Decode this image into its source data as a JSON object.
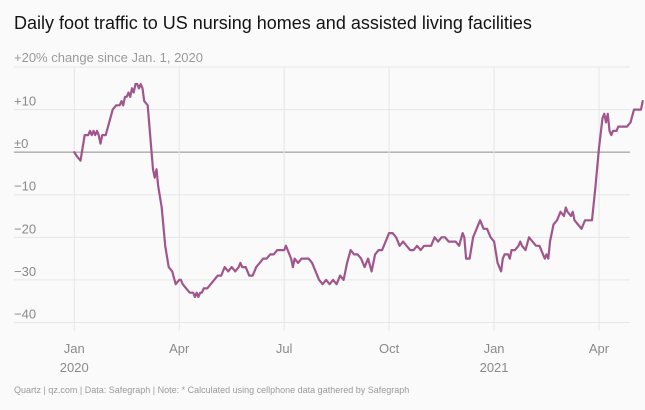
{
  "chart_data": {
    "type": "line",
    "title": "Daily foot traffic to US nursing homes and assisted living facilities",
    "top_tick_label": "+20% change since Jan. 1, 2020",
    "ylabel": "% change since Jan. 1, 2020",
    "ylim": [
      -42,
      20
    ],
    "y_ticks": [
      {
        "value": 20,
        "label": ""
      },
      {
        "value": 10,
        "label": "+10"
      },
      {
        "value": 0,
        "label": "±0"
      },
      {
        "value": -10,
        "label": "−10"
      },
      {
        "value": -20,
        "label": "−20"
      },
      {
        "value": -30,
        "label": "−30"
      },
      {
        "value": -40,
        "label": "−40"
      }
    ],
    "x_unit": "months since Jan 1, 2020",
    "xlim": [
      -0.15,
      15.6
    ],
    "x_ticks": [
      {
        "value": 0,
        "label": "Jan",
        "sublabel": "2020"
      },
      {
        "value": 3,
        "label": "Apr",
        "sublabel": ""
      },
      {
        "value": 6,
        "label": "Jul",
        "sublabel": ""
      },
      {
        "value": 9,
        "label": "Oct",
        "sublabel": ""
      },
      {
        "value": 12,
        "label": "Jan",
        "sublabel": "2021"
      },
      {
        "value": 15,
        "label": "Apr",
        "sublabel": ""
      }
    ],
    "series": [
      {
        "name": "Foot traffic change",
        "color": "#a0558c",
        "points": [
          [
            0.0,
            0
          ],
          [
            0.08,
            -1
          ],
          [
            0.18,
            -2
          ],
          [
            0.3,
            4
          ],
          [
            0.4,
            4
          ],
          [
            0.45,
            5
          ],
          [
            0.5,
            4
          ],
          [
            0.55,
            5
          ],
          [
            0.6,
            4
          ],
          [
            0.65,
            5
          ],
          [
            0.7,
            4
          ],
          [
            0.75,
            2
          ],
          [
            0.8,
            4
          ],
          [
            0.9,
            4
          ],
          [
            1.0,
            7
          ],
          [
            1.1,
            10
          ],
          [
            1.2,
            11
          ],
          [
            1.3,
            11
          ],
          [
            1.35,
            12
          ],
          [
            1.4,
            11
          ],
          [
            1.45,
            13
          ],
          [
            1.5,
            13
          ],
          [
            1.55,
            14
          ],
          [
            1.6,
            13
          ],
          [
            1.65,
            15
          ],
          [
            1.7,
            14
          ],
          [
            1.75,
            16
          ],
          [
            1.8,
            16
          ],
          [
            1.85,
            15
          ],
          [
            1.9,
            16
          ],
          [
            1.95,
            15
          ],
          [
            2.0,
            12
          ],
          [
            2.1,
            11
          ],
          [
            2.2,
            1
          ],
          [
            2.25,
            -4
          ],
          [
            2.3,
            -6
          ],
          [
            2.35,
            -4
          ],
          [
            2.4,
            -8
          ],
          [
            2.5,
            -13
          ],
          [
            2.6,
            -22
          ],
          [
            2.7,
            -27
          ],
          [
            2.8,
            -28
          ],
          [
            2.9,
            -31
          ],
          [
            3.0,
            -30
          ],
          [
            3.05,
            -30
          ],
          [
            3.1,
            -31
          ],
          [
            3.2,
            -32
          ],
          [
            3.3,
            -33
          ],
          [
            3.4,
            -33
          ],
          [
            3.45,
            -34
          ],
          [
            3.5,
            -33
          ],
          [
            3.55,
            -34
          ],
          [
            3.6,
            -33
          ],
          [
            3.65,
            -33
          ],
          [
            3.7,
            -32
          ],
          [
            3.8,
            -32
          ],
          [
            3.9,
            -31
          ],
          [
            4.0,
            -30
          ],
          [
            4.1,
            -29
          ],
          [
            4.2,
            -29
          ],
          [
            4.3,
            -27
          ],
          [
            4.4,
            -28
          ],
          [
            4.5,
            -27
          ],
          [
            4.6,
            -28
          ],
          [
            4.7,
            -27
          ],
          [
            4.75,
            -26
          ],
          [
            4.8,
            -27
          ],
          [
            4.9,
            -27
          ],
          [
            5.0,
            -29
          ],
          [
            5.1,
            -29
          ],
          [
            5.2,
            -27
          ],
          [
            5.3,
            -26
          ],
          [
            5.4,
            -25
          ],
          [
            5.5,
            -25
          ],
          [
            5.6,
            -24
          ],
          [
            5.7,
            -24
          ],
          [
            5.8,
            -23
          ],
          [
            5.9,
            -23
          ],
          [
            6.0,
            -23
          ],
          [
            6.05,
            -22
          ],
          [
            6.1,
            -23
          ],
          [
            6.2,
            -25
          ],
          [
            6.25,
            -27
          ],
          [
            6.3,
            -25
          ],
          [
            6.4,
            -26
          ],
          [
            6.5,
            -25
          ],
          [
            6.6,
            -25
          ],
          [
            6.7,
            -25
          ],
          [
            6.8,
            -26
          ],
          [
            6.9,
            -28
          ],
          [
            7.0,
            -30
          ],
          [
            7.1,
            -31
          ],
          [
            7.2,
            -30
          ],
          [
            7.3,
            -31
          ],
          [
            7.4,
            -30
          ],
          [
            7.5,
            -31
          ],
          [
            7.6,
            -29
          ],
          [
            7.7,
            -30
          ],
          [
            7.8,
            -26
          ],
          [
            7.9,
            -23
          ],
          [
            8.0,
            -24
          ],
          [
            8.1,
            -24
          ],
          [
            8.2,
            -25
          ],
          [
            8.3,
            -27
          ],
          [
            8.4,
            -25
          ],
          [
            8.5,
            -28
          ],
          [
            8.6,
            -24
          ],
          [
            8.7,
            -23
          ],
          [
            8.8,
            -23
          ],
          [
            8.9,
            -21
          ],
          [
            9.0,
            -19
          ],
          [
            9.1,
            -19
          ],
          [
            9.2,
            -20
          ],
          [
            9.3,
            -22
          ],
          [
            9.4,
            -21
          ],
          [
            9.5,
            -22
          ],
          [
            9.6,
            -23
          ],
          [
            9.7,
            -23
          ],
          [
            9.8,
            -22
          ],
          [
            9.9,
            -23
          ],
          [
            10.0,
            -22
          ],
          [
            10.1,
            -22
          ],
          [
            10.2,
            -22
          ],
          [
            10.3,
            -20
          ],
          [
            10.4,
            -21
          ],
          [
            10.5,
            -20
          ],
          [
            10.6,
            -20
          ],
          [
            10.7,
            -21
          ],
          [
            10.8,
            -21
          ],
          [
            10.9,
            -21
          ],
          [
            11.0,
            -22
          ],
          [
            11.1,
            -19
          ],
          [
            11.15,
            -20
          ],
          [
            11.2,
            -25
          ],
          [
            11.3,
            -25
          ],
          [
            11.4,
            -20
          ],
          [
            11.5,
            -18
          ],
          [
            11.6,
            -16
          ],
          [
            11.7,
            -18
          ],
          [
            11.8,
            -18
          ],
          [
            11.85,
            -19
          ],
          [
            11.9,
            -20
          ],
          [
            12.0,
            -21
          ],
          [
            12.1,
            -26
          ],
          [
            12.2,
            -28
          ],
          [
            12.25,
            -25
          ],
          [
            12.3,
            -24
          ],
          [
            12.4,
            -24
          ],
          [
            12.45,
            -25
          ],
          [
            12.5,
            -23
          ],
          [
            12.6,
            -23
          ],
          [
            12.7,
            -22
          ],
          [
            12.75,
            -21
          ],
          [
            12.8,
            -22
          ],
          [
            12.9,
            -23
          ],
          [
            13.0,
            -20
          ],
          [
            13.1,
            -21
          ],
          [
            13.2,
            -22
          ],
          [
            13.3,
            -22
          ],
          [
            13.4,
            -24
          ],
          [
            13.45,
            -25
          ],
          [
            13.5,
            -24
          ],
          [
            13.55,
            -25
          ],
          [
            13.6,
            -21
          ],
          [
            13.7,
            -17
          ],
          [
            13.8,
            -16
          ],
          [
            13.9,
            -14
          ],
          [
            14.0,
            -15
          ],
          [
            14.05,
            -13
          ],
          [
            14.1,
            -14
          ],
          [
            14.2,
            -15
          ],
          [
            14.25,
            -14
          ],
          [
            14.3,
            -16
          ],
          [
            14.4,
            -17
          ],
          [
            14.5,
            -18
          ],
          [
            14.55,
            -17
          ],
          [
            14.6,
            -16
          ],
          [
            14.7,
            -16
          ],
          [
            14.8,
            -16
          ],
          [
            14.9,
            -8
          ],
          [
            15.0,
            1
          ],
          [
            15.1,
            8
          ],
          [
            15.15,
            9
          ],
          [
            15.2,
            7
          ],
          [
            15.25,
            9
          ],
          [
            15.3,
            5
          ],
          [
            15.35,
            4
          ],
          [
            15.4,
            5
          ],
          [
            15.5,
            5
          ],
          [
            15.55,
            6
          ],
          [
            15.7,
            6
          ],
          [
            15.8,
            6
          ],
          [
            15.9,
            7
          ],
          [
            16.0,
            10
          ],
          [
            16.1,
            10
          ],
          [
            16.2,
            10
          ],
          [
            16.25,
            12
          ]
        ]
      }
    ]
  },
  "footer": "Quartz | qz.com | Data: Safegraph | Note: * Calculated using cellphone data gathered by Safegraph"
}
